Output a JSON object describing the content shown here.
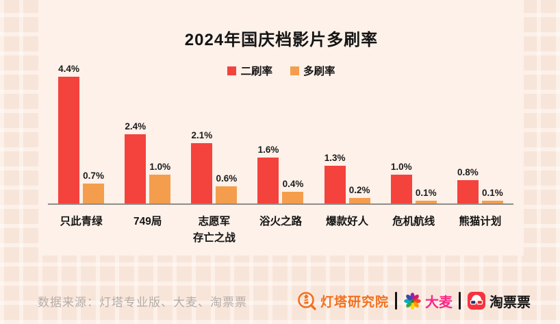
{
  "title": "2024年国庆档影片多刷率",
  "chart_data": {
    "type": "bar",
    "title": "2024年国庆档影片多刷率",
    "categories": [
      "只此青绿",
      "749局",
      "志愿军\n存亡之战",
      "浴火之路",
      "爆款好人",
      "危机航线",
      "熊猫计划"
    ],
    "series": [
      {
        "name": "二刷率",
        "color": "#f4423d",
        "values": [
          4.4,
          2.4,
          2.1,
          1.6,
          1.3,
          1.0,
          0.8
        ]
      },
      {
        "name": "多刷率",
        "color": "#f49e4d",
        "values": [
          0.7,
          1.0,
          0.6,
          0.4,
          0.2,
          0.1,
          0.1
        ]
      }
    ],
    "value_suffix": "%",
    "ylim": [
      0,
      4.6
    ],
    "grid": false,
    "legend_position": "top",
    "data_labels": true
  },
  "footer": {
    "source_text": "数据来源：灯塔专业版、大麦、淘票票",
    "logos": [
      {
        "label": "灯塔研究院",
        "color": "#f2701d"
      },
      {
        "label": "大麦",
        "color": "#fd2484"
      },
      {
        "label": "淘票票",
        "color": "#141414"
      }
    ]
  },
  "colors": {
    "background": "#f8e5da",
    "card": "#fdf1e9",
    "axis": "#8f8c89",
    "source_text": "#b6aca6"
  }
}
